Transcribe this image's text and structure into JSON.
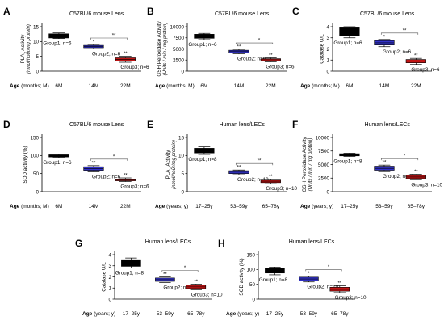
{
  "colors": {
    "group1": "#000000",
    "group2": "#3232c8",
    "group3": "#c01414",
    "axis": "#000000",
    "bracket": "#555555"
  },
  "chart_data": [
    {
      "type": "box",
      "panel": "A",
      "title": "C57BL/6 mouse Lens",
      "ylabel_line1": "PLA",
      "ylabel_sub": "2",
      "ylabel_line2": " Activity",
      "ylabel_units": "(nmol/hour/mg protein)",
      "ylim": [
        0,
        15
      ],
      "yticks": [
        "0",
        "5",
        "10",
        "15"
      ],
      "xaxis_title": "Age",
      "xaxis_units": "(months; M)",
      "categories": [
        "6M",
        "14M",
        "22M"
      ],
      "groups": [
        {
          "label": "Group1; n=6",
          "whisker": [
            11.0,
            12.9
          ],
          "box": [
            11.2,
            12.6
          ],
          "median": 12.0,
          "star": ""
        },
        {
          "label": "Group2; n=6",
          "whisker": [
            7.5,
            9.0
          ],
          "box": [
            7.9,
            8.7
          ],
          "median": 8.3,
          "star": "*"
        },
        {
          "label": "Group3; n=6",
          "whisker": [
            3.0,
            5.0
          ],
          "box": [
            3.4,
            4.5
          ],
          "median": 4.0,
          "star": "**"
        }
      ],
      "bracket": {
        "from": 1,
        "to": 2,
        "label": "**"
      }
    },
    {
      "type": "box",
      "panel": "B",
      "title": "C57BL/6 mouse Lens",
      "ylabel_line1": "GSH Peroxidase Activity",
      "ylabel_sub": "",
      "ylabel_line2": "",
      "ylabel_units": "(Units / min / mg protein)",
      "ylim": [
        0,
        10000
      ],
      "yticks": [
        "0",
        "2500",
        "5000",
        "7500",
        "10000"
      ],
      "xaxis_title": "Age",
      "xaxis_units": "(months; M)",
      "categories": [
        "6M",
        "14M",
        "22M"
      ],
      "groups": [
        {
          "label": "Group1; n=6",
          "whisker": [
            7100,
            8500
          ],
          "box": [
            7400,
            8300
          ],
          "median": 7900,
          "star": ""
        },
        {
          "label": "Group2; n=6",
          "whisker": [
            3900,
            4900
          ],
          "box": [
            4100,
            4700
          ],
          "median": 4400,
          "star": "**"
        },
        {
          "label": "Group3; n=6",
          "whisker": [
            2100,
            3000
          ],
          "box": [
            2300,
            2800
          ],
          "median": 2550,
          "star": "**"
        }
      ],
      "bracket": {
        "from": 1,
        "to": 2,
        "label": "*"
      }
    },
    {
      "type": "box",
      "panel": "C",
      "title": "C57BL/6 mouse Lens",
      "ylabel_line1": "Catalase U/L",
      "ylabel_sub": "",
      "ylabel_line2": "",
      "ylabel_units": "",
      "ylim": [
        0,
        4
      ],
      "yticks": [
        "0",
        "1",
        "2",
        "3",
        "4"
      ],
      "xaxis_title": "Age",
      "xaxis_units": "(months; M)",
      "categories": [
        "6M",
        "14M",
        "22M"
      ],
      "groups": [
        {
          "label": "Group1; n=6",
          "whisker": [
            3.0,
            4.0
          ],
          "box": [
            3.15,
            3.9
          ],
          "median": 3.6,
          "star": ""
        },
        {
          "label": "Group2; n=6",
          "whisker": [
            2.2,
            2.85
          ],
          "box": [
            2.35,
            2.75
          ],
          "median": 2.55,
          "star": "*"
        },
        {
          "label": "Group3; n=6",
          "whisker": [
            0.6,
            1.15
          ],
          "box": [
            0.75,
            1.05
          ],
          "median": 0.9,
          "star": "**"
        }
      ],
      "bracket": {
        "from": 1,
        "to": 2,
        "label": "**"
      }
    },
    {
      "type": "box",
      "panel": "D",
      "title": "C57BL/6 mouse Lens",
      "ylabel_line1": "SOD activity (%)",
      "ylabel_sub": "",
      "ylabel_line2": "",
      "ylabel_units": "",
      "ylim": [
        0,
        150
      ],
      "yticks": [
        "0",
        "50",
        "100",
        "150"
      ],
      "xaxis_title": "Age",
      "xaxis_units": "(months; M)",
      "categories": [
        "6M",
        "14M",
        "22M"
      ],
      "groups": [
        {
          "label": "Group1; n=6",
          "whisker": [
            94,
            104
          ],
          "box": [
            96,
            102
          ],
          "median": 99,
          "star": ""
        },
        {
          "label": "Group2; n=6",
          "whisker": [
            55,
            72
          ],
          "box": [
            59,
            69
          ],
          "median": 64,
          "star": "**"
        },
        {
          "label": "Group3; n=6",
          "whisker": [
            28,
            38
          ],
          "box": [
            30,
            35
          ],
          "median": 32,
          "star": "**"
        }
      ],
      "bracket": {
        "from": 1,
        "to": 2,
        "label": "*"
      }
    },
    {
      "type": "box",
      "panel": "E",
      "title": "Human lens/LECs",
      "ylabel_line1": "PLA",
      "ylabel_sub": "2",
      "ylabel_line2": " Activity",
      "ylabel_units": "(nmol/hour/mg protein)",
      "ylim": [
        0,
        15
      ],
      "yticks": [
        "0",
        "5",
        "10",
        "15"
      ],
      "xaxis_title": "Age",
      "xaxis_units": "(years; y)",
      "categories": [
        "17–25y",
        "53–59y",
        "65–78y"
      ],
      "groups": [
        {
          "label": "Group1; n=8",
          "whisker": [
            10.3,
            12.4
          ],
          "box": [
            10.7,
            12.0
          ],
          "median": 11.4,
          "star": ""
        },
        {
          "label": "Group2; n=10",
          "whisker": [
            4.7,
            6.0
          ],
          "box": [
            5.0,
            5.8
          ],
          "median": 5.4,
          "star": "**"
        },
        {
          "label": "Group3; n=10",
          "whisker": [
            2.2,
            3.5
          ],
          "box": [
            2.5,
            3.2
          ],
          "median": 2.9,
          "star": "**"
        }
      ],
      "bracket": {
        "from": 1,
        "to": 2,
        "label": "**"
      }
    },
    {
      "type": "box",
      "panel": "F",
      "title": "Human lens/LECs",
      "ylabel_line1": "GSH Peroxidase Activity",
      "ylabel_sub": "",
      "ylabel_line2": "",
      "ylabel_units": "(Units / min / mg protein)",
      "ylim": [
        0,
        10000
      ],
      "yticks": [
        "0",
        "2500",
        "5000",
        "7500",
        "10000"
      ],
      "xaxis_title": "Age",
      "xaxis_units": "(years; y)",
      "categories": [
        "17–25y",
        "53–59y",
        "65–78y"
      ],
      "groups": [
        {
          "label": "Group1; n=8",
          "whisker": [
            6500,
            7100
          ],
          "box": [
            6600,
            7000
          ],
          "median": 6800,
          "star": ""
        },
        {
          "label": "Group2; n=10",
          "whisker": [
            3700,
            4900
          ],
          "box": [
            3950,
            4700
          ],
          "median": 4300,
          "star": "**"
        },
        {
          "label": "Group3; n=10",
          "whisker": [
            2200,
            3200
          ],
          "box": [
            2400,
            3000
          ],
          "median": 2700,
          "star": "**"
        }
      ],
      "bracket": {
        "from": 1,
        "to": 2,
        "label": "*"
      }
    },
    {
      "type": "box",
      "panel": "G",
      "title": "Human lens/LECs",
      "ylabel_line1": "Catalase U/L",
      "ylabel_sub": "",
      "ylabel_line2": "",
      "ylabel_units": "",
      "ylim": [
        0,
        4
      ],
      "yticks": [
        "0",
        "1",
        "2",
        "3",
        "4"
      ],
      "xaxis_title": "Age",
      "xaxis_units": "(years; y)",
      "categories": [
        "17–25y",
        "53–59y",
        "65–78y"
      ],
      "groups": [
        {
          "label": "Group1; n=8",
          "whisker": [
            2.8,
            3.7
          ],
          "box": [
            2.95,
            3.55
          ],
          "median": 3.3,
          "star": ""
        },
        {
          "label": "Group2; n=10",
          "whisker": [
            1.5,
            2.0
          ],
          "box": [
            1.6,
            1.9
          ],
          "median": 1.75,
          "star": "**"
        },
        {
          "label": "Group3; n=10",
          "whisker": [
            0.85,
            1.35
          ],
          "box": [
            0.95,
            1.25
          ],
          "median": 1.1,
          "star": "**"
        }
      ],
      "bracket": {
        "from": 1,
        "to": 2,
        "label": "*"
      }
    },
    {
      "type": "box",
      "panel": "H",
      "title": "Human lens/LECs",
      "ylabel_line1": "SOD activity (%)",
      "ylabel_sub": "",
      "ylabel_line2": "",
      "ylabel_units": "",
      "ylim": [
        0,
        150
      ],
      "yticks": [
        "0",
        "50",
        "100",
        "150"
      ],
      "xaxis_title": "Age",
      "xaxis_units": "(years; y)",
      "categories": [
        "17–25y",
        "53–59y",
        "65–78y"
      ],
      "groups": [
        {
          "label": "Group1; n=8",
          "whisker": [
            82,
            108
          ],
          "box": [
            88,
            103
          ],
          "median": 95,
          "star": ""
        },
        {
          "label": "Group2; n=10",
          "whisker": [
            58,
            78
          ],
          "box": [
            62,
            74
          ],
          "median": 68,
          "star": "*"
        },
        {
          "label": "Group3; n=10",
          "whisker": [
            22,
            45
          ],
          "box": [
            27,
            40
          ],
          "median": 33,
          "star": "**"
        }
      ],
      "bracket": {
        "from": 1,
        "to": 2,
        "label": "*"
      }
    }
  ]
}
